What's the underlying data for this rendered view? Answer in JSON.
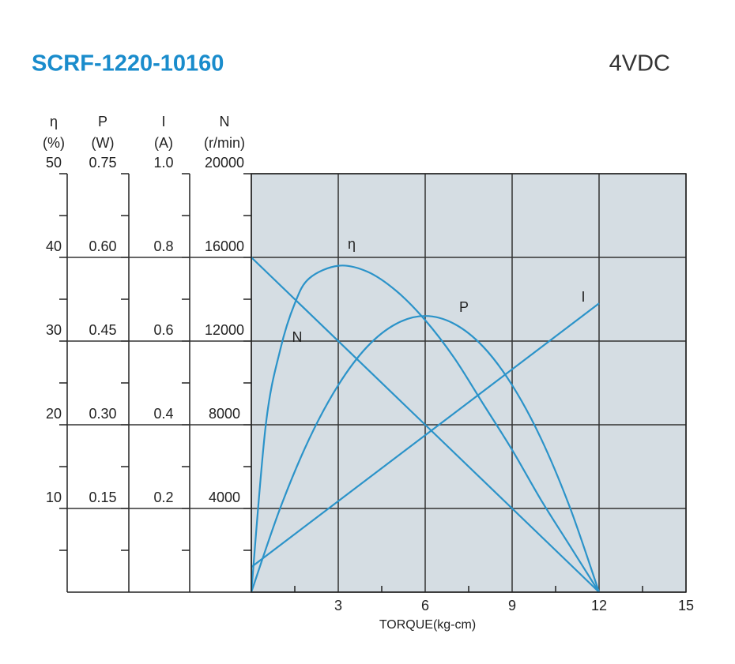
{
  "chart_data": {
    "type": "line",
    "title": "SCRF-1220-10160",
    "subtitle": "4VDC",
    "x_label": "TORQUE(kg-cm)",
    "xlim": [
      0,
      15
    ],
    "xticks": [
      3,
      6,
      9,
      12,
      15
    ],
    "grid": true,
    "plot_background": "#d5dde3",
    "axes": {
      "y": {
        "label": "η",
        "unit": "(%)",
        "lim": [
          0,
          50
        ],
        "ticks": [
          10,
          20,
          30,
          40,
          50
        ]
      },
      "y2": {
        "label": "P",
        "unit": "(W)",
        "lim": [
          0,
          0.75
        ],
        "ticks": [
          0.15,
          {
            "value": 0.3,
            "label": "0.30"
          },
          0.45,
          {
            "value": 0.6,
            "label": "0.60"
          },
          0.75
        ]
      },
      "y3": {
        "label": "I",
        "unit": "(A)",
        "lim": [
          0,
          1
        ],
        "ticks": [
          0.2,
          0.4,
          0.6,
          0.8,
          {
            "value": 1,
            "label": "1.0"
          }
        ]
      },
      "y4": {
        "label": "N",
        "unit": "(r/min)",
        "lim": [
          0,
          20000
        ],
        "ticks": [
          4000,
          8000,
          12000,
          16000,
          20000
        ]
      }
    },
    "series": [
      {
        "name": "η",
        "color": "#2b93c9",
        "axis": "y",
        "x": [
          0,
          0.5,
          1,
          1.5,
          2,
          3,
          4,
          5,
          6,
          7,
          8,
          9,
          10,
          11,
          12
        ],
        "values": [
          0,
          20,
          29,
          34.5,
          37.5,
          39,
          38.3,
          36,
          32.5,
          28,
          22.5,
          17,
          11,
          5.5,
          0
        ]
      },
      {
        "name": "P",
        "color": "#2b93c9",
        "axis": "y2",
        "x": [
          0,
          1,
          2,
          3,
          4,
          5,
          6,
          7,
          8,
          9,
          10,
          11,
          12
        ],
        "values": [
          0,
          0.151,
          0.275,
          0.371,
          0.44,
          0.481,
          0.495,
          0.481,
          0.44,
          0.371,
          0.275,
          0.151,
          0
        ]
      },
      {
        "name": "I",
        "color": "#2b93c9",
        "axis": "y3",
        "x": [
          0,
          12
        ],
        "values": [
          0.06,
          0.69
        ]
      },
      {
        "name": "N",
        "color": "#2b93c9",
        "axis": "y4",
        "x": [
          0,
          12
        ],
        "values": [
          16000,
          0
        ]
      }
    ]
  }
}
